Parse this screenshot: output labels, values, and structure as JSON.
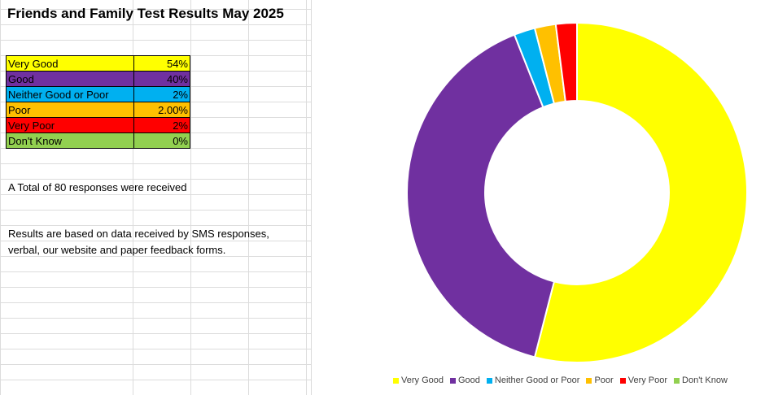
{
  "sheet": {
    "title": "Friends and Family Test Results May 2025",
    "total_note": "A Total of 80 responses were received",
    "source_note": "Results are based on data received by SMS responses, verbal, our website and paper feedback forms."
  },
  "table": [
    {
      "category": "Very Good",
      "value_label": "54%",
      "color": "#ffff00"
    },
    {
      "category": "Good",
      "value_label": "40%",
      "color": "#7030a0"
    },
    {
      "category": "Neither Good or Poor",
      "value_label": "2%",
      "color": "#00b0f0"
    },
    {
      "category": "Poor",
      "value_label": "2.00%",
      "color": "#ffc000"
    },
    {
      "category": "Very Poor",
      "value_label": "2%",
      "color": "#ff0000"
    },
    {
      "category": "Don't Know",
      "value_label": "0%",
      "color": "#92d050"
    }
  ],
  "chart_data": {
    "type": "pie",
    "variant": "donut",
    "categories": [
      "Very Good",
      "Good",
      "Neither Good or Poor",
      "Poor",
      "Very Poor",
      "Don't Know"
    ],
    "values": [
      54,
      40,
      2,
      2,
      2,
      0
    ],
    "colors": [
      "#ffff00",
      "#7030a0",
      "#00b0f0",
      "#ffc000",
      "#ff0000",
      "#92d050"
    ],
    "legend_position": "bottom",
    "start_angle_deg": 0,
    "direction": "clockwise"
  }
}
